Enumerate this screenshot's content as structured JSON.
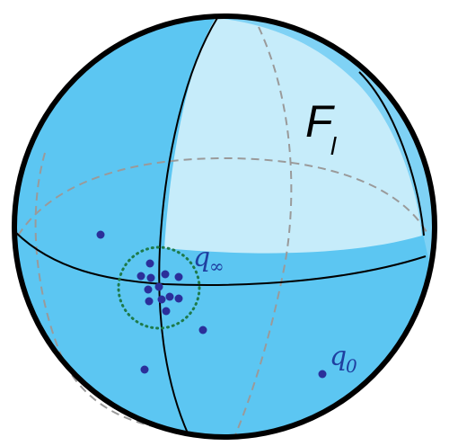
{
  "labels": {
    "face": {
      "main": "F",
      "sub": "l"
    },
    "q_infinity": {
      "main": "q",
      "sub": "∞"
    },
    "q_zero": {
      "main": "q",
      "sub": "0"
    }
  },
  "colors": {
    "sphere_fill": "#5cc6f2",
    "highlight_fill": "#c6ecfa",
    "rim_fill": "#7fd2f5",
    "outline": "#000000",
    "hidden_lines": "#9a9a9a",
    "points": "#2b2f9a",
    "neighborhood_ring": "#1e7a4a"
  },
  "points": {
    "cluster_size": 12,
    "scattered_count": 4
  }
}
